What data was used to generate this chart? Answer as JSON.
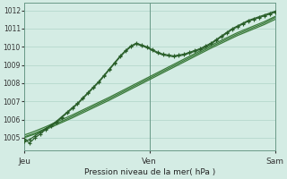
{
  "xlabel": "Pression niveau de la mer( hPa )",
  "background_color": "#d4ece4",
  "grid_color": "#b0d4c8",
  "line_color_dark": "#2a5f2a",
  "line_color_mid": "#3a7a3a",
  "ylim": [
    1004.3,
    1012.4
  ],
  "yticks": [
    1005,
    1006,
    1007,
    1008,
    1009,
    1010,
    1011,
    1012
  ],
  "xtick_labels": [
    "Jeu",
    "Ven",
    "Sam"
  ],
  "xtick_positions": [
    0.0,
    0.5,
    1.0
  ],
  "figsize": [
    3.2,
    2.0
  ],
  "dpi": 100,
  "wiggly1_y": [
    1004.8,
    1004.9,
    1005.1,
    1005.3,
    1005.5,
    1005.7,
    1005.9,
    1006.15,
    1006.4,
    1006.65,
    1006.9,
    1007.2,
    1007.5,
    1007.8,
    1008.1,
    1008.45,
    1008.8,
    1009.15,
    1009.5,
    1009.8,
    1010.05,
    1010.2,
    1010.1,
    1010.0,
    1009.85,
    1009.7,
    1009.6,
    1009.55,
    1009.5,
    1009.55,
    1009.6,
    1009.7,
    1009.8,
    1009.9,
    1010.05,
    1010.2,
    1010.4,
    1010.6,
    1010.8,
    1011.0,
    1011.15,
    1011.3,
    1011.45,
    1011.55,
    1011.65,
    1011.75,
    1011.85,
    1011.95
  ],
  "wiggly2_y": [
    1004.95,
    1004.7,
    1005.0,
    1005.2,
    1005.45,
    1005.65,
    1005.85,
    1006.1,
    1006.35,
    1006.6,
    1006.85,
    1007.15,
    1007.45,
    1007.75,
    1008.05,
    1008.4,
    1008.75,
    1009.1,
    1009.45,
    1009.75,
    1010.0,
    1010.15,
    1010.05,
    1009.95,
    1009.8,
    1009.65,
    1009.55,
    1009.5,
    1009.45,
    1009.5,
    1009.55,
    1009.65,
    1009.75,
    1009.85,
    1010.0,
    1010.15,
    1010.35,
    1010.55,
    1010.75,
    1010.95,
    1011.1,
    1011.25,
    1011.4,
    1011.5,
    1011.6,
    1011.7,
    1011.8,
    1011.9
  ],
  "trend1_y": [
    1005.05,
    1005.15,
    1005.25,
    1005.38,
    1005.51,
    1005.64,
    1005.77,
    1005.9,
    1006.03,
    1006.17,
    1006.31,
    1006.45,
    1006.59,
    1006.73,
    1006.87,
    1007.01,
    1007.15,
    1007.3,
    1007.45,
    1007.6,
    1007.75,
    1007.9,
    1008.05,
    1008.2,
    1008.35,
    1008.5,
    1008.65,
    1008.8,
    1008.95,
    1009.1,
    1009.25,
    1009.4,
    1009.55,
    1009.7,
    1009.85,
    1010.0,
    1010.14,
    1010.28,
    1010.42,
    1010.56,
    1010.7,
    1010.82,
    1010.94,
    1011.06,
    1011.18,
    1011.3,
    1011.45,
    1011.6
  ],
  "trend2_y": [
    1005.15,
    1005.25,
    1005.36,
    1005.48,
    1005.6,
    1005.73,
    1005.86,
    1005.99,
    1006.12,
    1006.25,
    1006.39,
    1006.53,
    1006.67,
    1006.81,
    1006.95,
    1007.09,
    1007.23,
    1007.38,
    1007.53,
    1007.68,
    1007.83,
    1007.98,
    1008.13,
    1008.28,
    1008.43,
    1008.58,
    1008.73,
    1008.88,
    1009.03,
    1009.18,
    1009.33,
    1009.48,
    1009.63,
    1009.78,
    1009.93,
    1010.08,
    1010.22,
    1010.36,
    1010.5,
    1010.64,
    1010.78,
    1010.9,
    1011.02,
    1011.14,
    1011.26,
    1011.38,
    1011.52,
    1011.66
  ],
  "trend3_y": [
    1005.0,
    1005.1,
    1005.2,
    1005.32,
    1005.44,
    1005.57,
    1005.7,
    1005.83,
    1005.96,
    1006.09,
    1006.23,
    1006.37,
    1006.51,
    1006.65,
    1006.79,
    1006.93,
    1007.07,
    1007.22,
    1007.37,
    1007.52,
    1007.67,
    1007.82,
    1007.97,
    1008.12,
    1008.27,
    1008.42,
    1008.57,
    1008.72,
    1008.87,
    1009.02,
    1009.17,
    1009.32,
    1009.47,
    1009.62,
    1009.77,
    1009.92,
    1010.06,
    1010.2,
    1010.34,
    1010.48,
    1010.62,
    1010.74,
    1010.86,
    1010.98,
    1011.1,
    1011.22,
    1011.36,
    1011.5
  ]
}
